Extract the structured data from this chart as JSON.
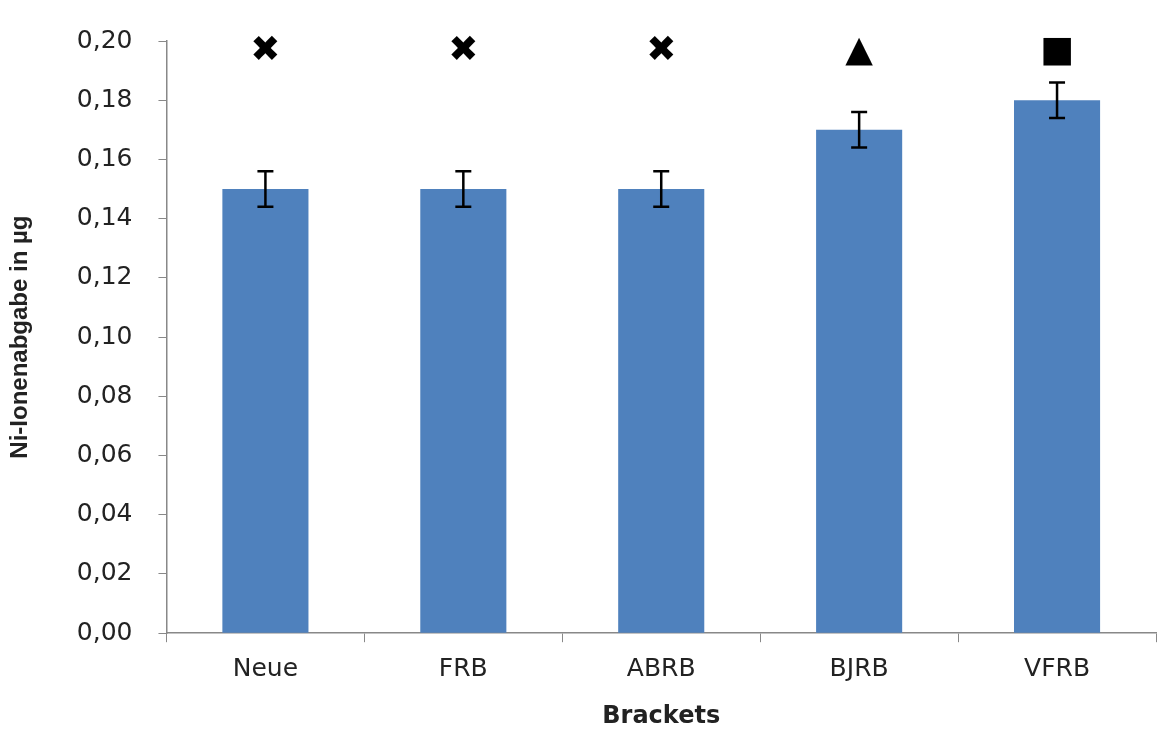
{
  "chart_data": {
    "type": "bar",
    "xlabel": "Brackets",
    "ylabel": "Ni-Ionenabgabe in µg",
    "categories": [
      "Neue",
      "FRB",
      "ABRB",
      "BJRB",
      "VFRB"
    ],
    "values": [
      0.15,
      0.15,
      0.15,
      0.17,
      0.18
    ],
    "errors": [
      0.006,
      0.006,
      0.006,
      0.006,
      0.006
    ],
    "color": "#4f81bd",
    "ylim": [
      0,
      0.2
    ],
    "yticks": [
      {
        "value": 0,
        "label": "0,00"
      },
      {
        "value": 0.02,
        "label": "0,02"
      },
      {
        "value": 0.04,
        "label": "0,04"
      },
      {
        "value": 0.06,
        "label": "0,06"
      },
      {
        "value": 0.08,
        "label": "0,08"
      },
      {
        "value": 0.1,
        "label": "0,10"
      },
      {
        "value": 0.12,
        "label": "0,12"
      },
      {
        "value": 0.14,
        "label": "0,14"
      },
      {
        "value": 0.16,
        "label": "0,16"
      },
      {
        "value": 0.18,
        "label": "0,18"
      },
      {
        "value": 0.2,
        "label": "0,20"
      }
    ],
    "annotations": [
      "✖",
      "✖",
      "✖",
      "▲",
      "■"
    ]
  }
}
